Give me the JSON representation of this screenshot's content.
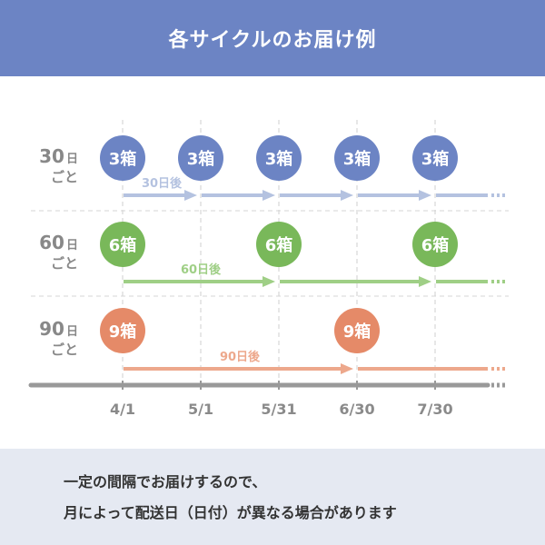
{
  "title": "各サイクルのお届け例",
  "colors": {
    "header_bg": "#6c84c4",
    "cycle30": "#6c84c4",
    "cycle30_arrow": "#b4c2e0",
    "cycle60": "#79b85a",
    "cycle60_arrow": "#9fcf86",
    "cycle90": "#e58a68",
    "cycle90_arrow": "#eda88c",
    "axis": "#999999",
    "row_label": "#888888",
    "footer_bg": "#e5e9f2"
  },
  "dates": [
    "4/1",
    "5/1",
    "5/31",
    "6/30",
    "7/30"
  ],
  "rows": [
    {
      "label_num": "30",
      "label_day": "日",
      "label_sub": "ごと",
      "box_label": "3箱",
      "deliveries": [
        0,
        1,
        2,
        3,
        4
      ],
      "interval_label": "30日後",
      "color_key": "cycle30",
      "arrow_color_key": "cycle30_arrow"
    },
    {
      "label_num": "60",
      "label_day": "日",
      "label_sub": "ごと",
      "box_label": "6箱",
      "deliveries": [
        0,
        2,
        4
      ],
      "interval_label": "60日後",
      "color_key": "cycle60",
      "arrow_color_key": "cycle60_arrow"
    },
    {
      "label_num": "90",
      "label_day": "日",
      "label_sub": "ごと",
      "box_label": "9箱",
      "deliveries": [
        0,
        3
      ],
      "interval_label": "90日後",
      "color_key": "cycle90",
      "arrow_color_key": "cycle90_arrow"
    }
  ],
  "footer": {
    "line1": "一定の間隔でお届けするので、",
    "line2": "月によって配送日（日付）が異なる場合があります"
  }
}
